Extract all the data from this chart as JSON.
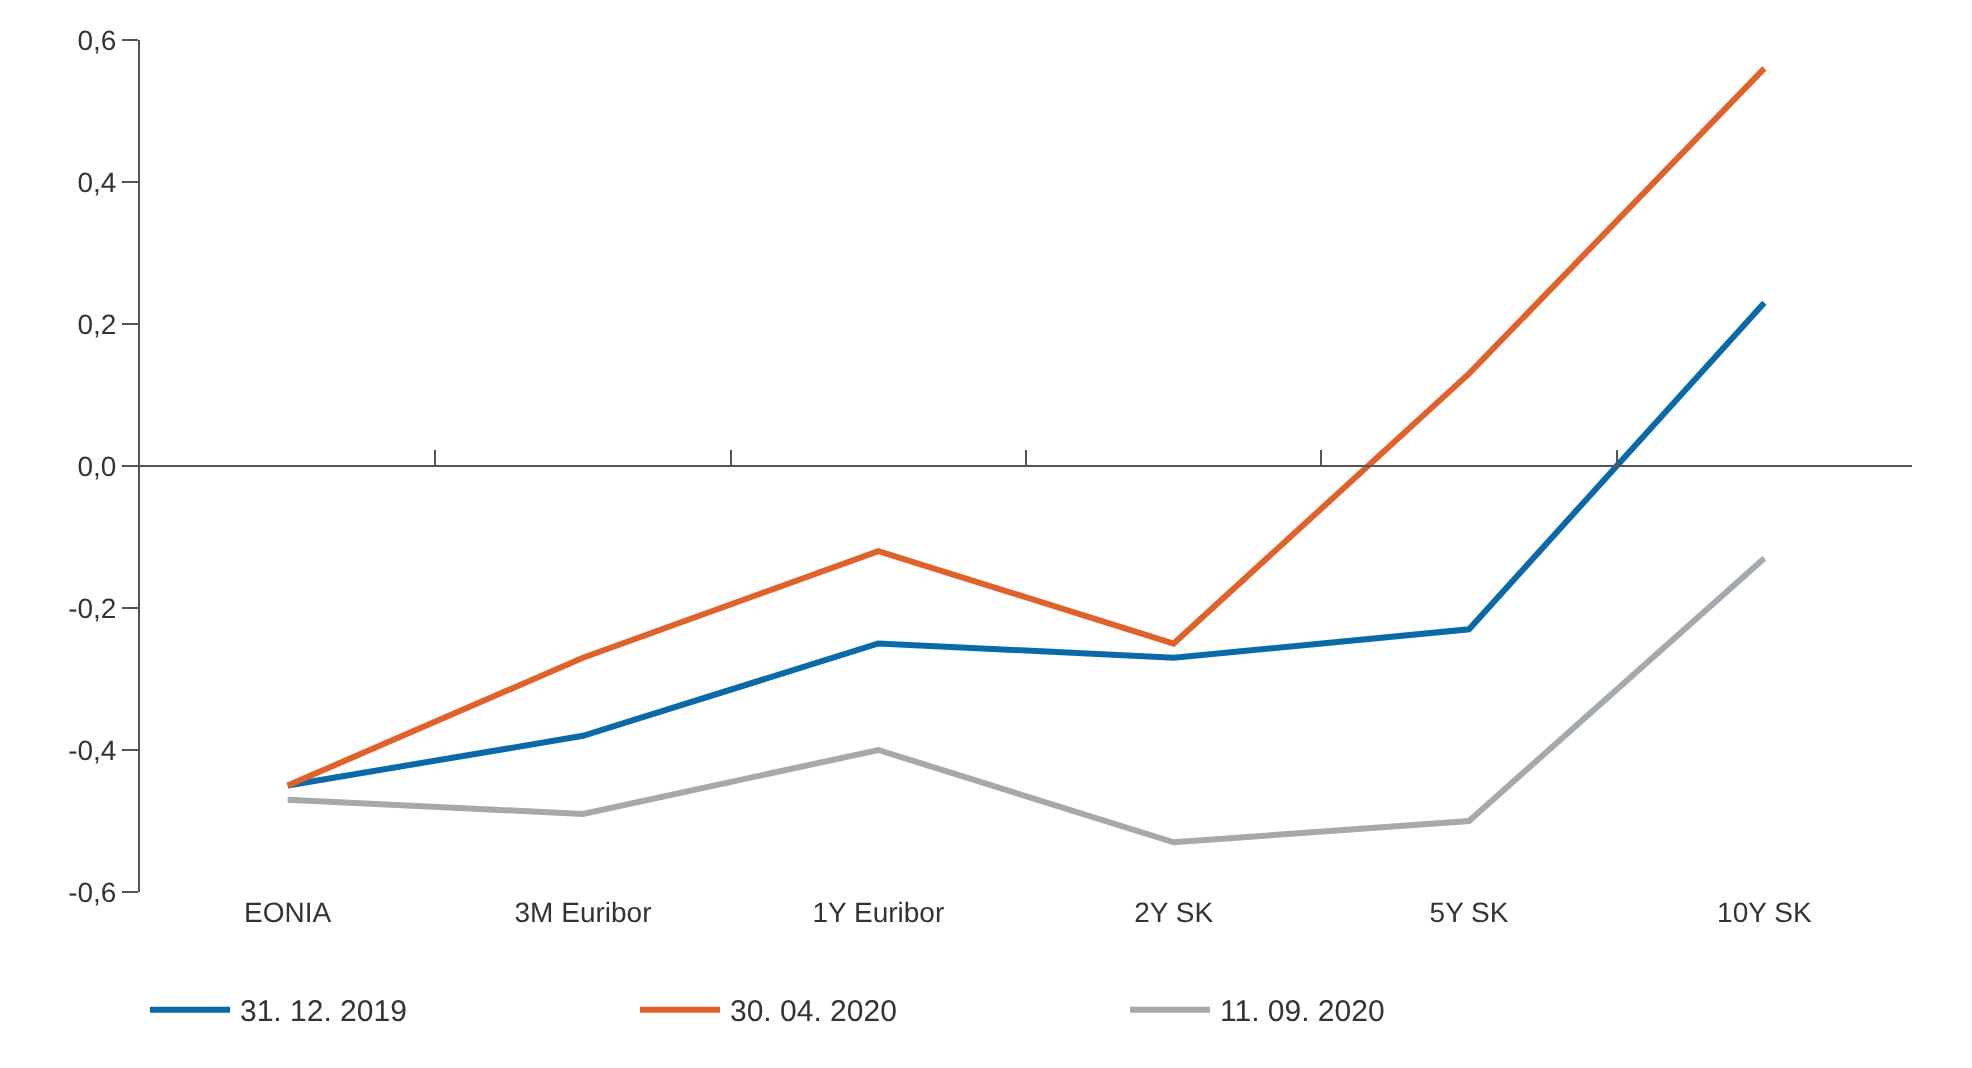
{
  "chart_data": {
    "type": "line",
    "categories": [
      "EONIA",
      "3M Euribor",
      "1Y Euribor",
      "2Y SK",
      "5Y SK",
      "10Y SK"
    ],
    "series": [
      {
        "name": "31. 12. 2019",
        "color": "#0a6aa8",
        "values": [
          -0.45,
          -0.38,
          -0.25,
          -0.27,
          -0.23,
          0.23
        ]
      },
      {
        "name": "30. 04. 2020",
        "color": "#e0622a",
        "values": [
          -0.45,
          -0.27,
          -0.12,
          -0.25,
          0.13,
          0.56
        ]
      },
      {
        "name": "11. 09. 2020",
        "color": "#a4a9ad",
        "values": [
          -0.47,
          -0.49,
          -0.4,
          -0.53,
          -0.5,
          -0.13
        ]
      }
    ],
    "ylim": [
      -0.6,
      0.6
    ],
    "yticks": [
      {
        "value": -0.6,
        "label": "-0,6"
      },
      {
        "value": -0.4,
        "label": "-0,4"
      },
      {
        "value": -0.2,
        "label": "-0,2"
      },
      {
        "value": 0,
        "label": "0,0"
      },
      {
        "value": 0.2,
        "label": "0,2"
      },
      {
        "value": 0.4,
        "label": "0,4"
      },
      {
        "value": 0.6,
        "label": "0,6"
      }
    ],
    "ref_lines": [
      {
        "axis": "y",
        "value": 0,
        "color": "#555555",
        "line_style": "solid"
      }
    ],
    "legend": "bottom",
    "marker": "none",
    "line_style": "solid"
  }
}
